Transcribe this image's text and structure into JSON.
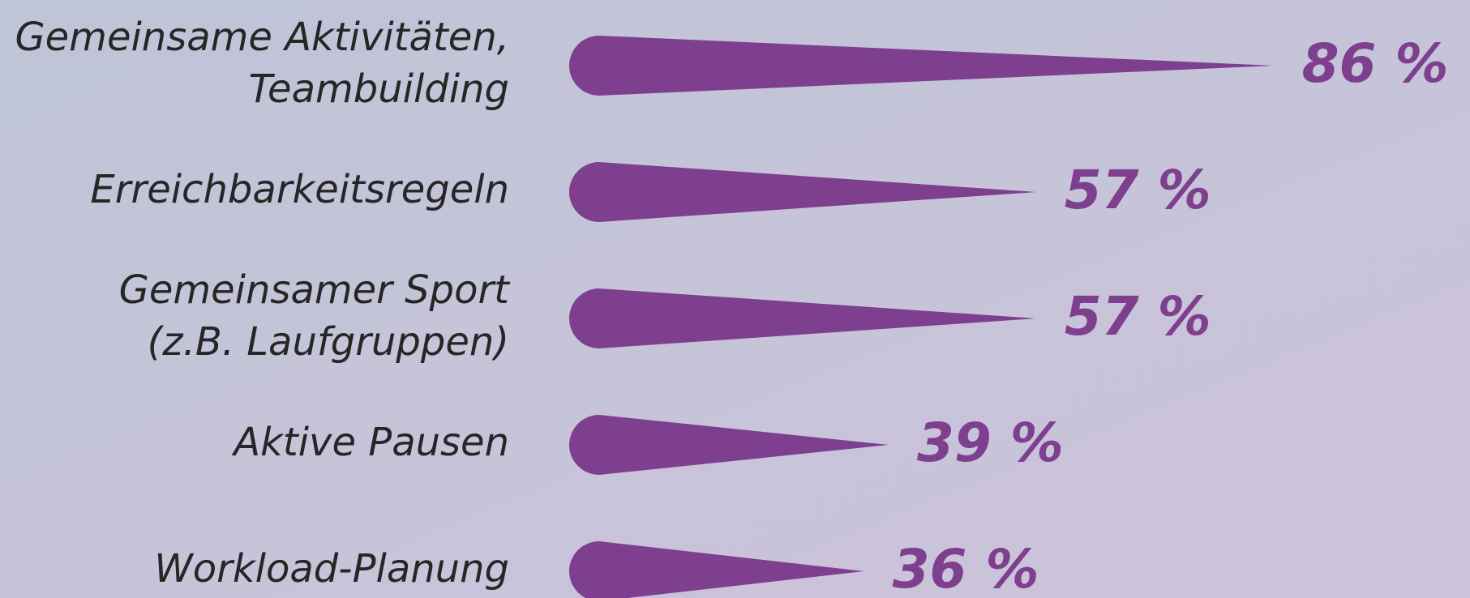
{
  "chart_data": {
    "type": "teardrop-bar",
    "categories": [
      [
        "Gemeinsame Aktivitäten,",
        "Teambuilding"
      ],
      [
        "Erreichbarkeitsregeln"
      ],
      [
        "Gemeinsamer Sport",
        "(z.B. Laufgruppen)"
      ],
      [
        "Aktive Pausen"
      ],
      [
        "Workload-Planung"
      ]
    ],
    "values": [
      86,
      57,
      57,
      39,
      36
    ],
    "value_labels": [
      "86 %",
      "57 %",
      "57 %",
      "39 %",
      "36 %"
    ],
    "color": "#7f3f8f"
  }
}
